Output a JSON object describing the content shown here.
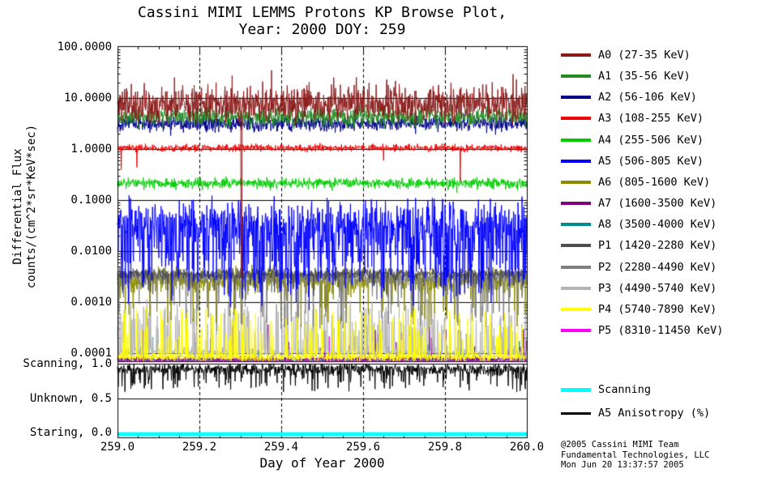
{
  "chart_data": {
    "type": "line",
    "title_line1": "Cassini MIMI LEMMS Protons KP Browse Plot,",
    "title_line2": "Year: 2000 DOY: 259",
    "xlabel": "Day of Year 2000",
    "ylabel_line1": "Differential Flux",
    "ylabel_line2": "counts/(cm^2*sr*KeV*sec)",
    "xlim": [
      259.0,
      260.0
    ],
    "x_ticks": [
      "259.0",
      "259.2",
      "259.4",
      "259.6",
      "259.8",
      "260.0"
    ],
    "y_ticks": [
      "100.0000",
      "10.0000",
      "1.0000",
      "0.1000",
      "0.0100",
      "0.0010",
      "0.0001"
    ],
    "flux_lim": [
      0.0001,
      100.0
    ],
    "flux_log10_lim": [
      -4,
      2
    ],
    "x_grid": "dashed vertical lines every 0.2 day",
    "y_grid": "solid horizontal lines at each decade",
    "legend_position": "right",
    "mode_axis": {
      "ticks": [
        {
          "label": "Scanning, 1.0",
          "value": 1.0
        },
        {
          "label": "Unknown, 0.5",
          "value": 0.5
        },
        {
          "label": "Staring, 0.0",
          "value": 0.0
        }
      ]
    },
    "series": [
      {
        "id": "A0",
        "label": "A0 (27-35 KeV)",
        "color": "#8b1a1a",
        "mean_flux": 7,
        "flux_range": [
          3,
          25
        ],
        "base": 0.88,
        "noise": 0.16,
        "spike_p": 0.05,
        "spike_amp": 0.35,
        "spike_dir": 1,
        "seed": 11,
        "events": [
          {
            "t": 259.303,
            "log": -2.52
          }
        ]
      },
      {
        "id": "A1",
        "label": "A1 (35-56 KeV)",
        "color": "#228b22",
        "mean_flux": 4.3,
        "flux_range": [
          2.8,
          8
        ],
        "base": 0.64,
        "noise": 0.09,
        "spike_p": 0.02,
        "spike_amp": 0.2,
        "spike_dir": 1,
        "seed": 12
      },
      {
        "id": "A2",
        "label": "A2 (56-106 KeV)",
        "color": "#00008b",
        "mean_flux": 3.1,
        "flux_range": [
          2.2,
          4.8
        ],
        "base": 0.5,
        "noise": 0.07,
        "spike_p": 0.02,
        "spike_amp": 0.15,
        "spike_dir": -1,
        "seed": 13
      },
      {
        "id": "A3",
        "label": "A3 (108-255 KeV)",
        "color": "#ee0000",
        "mean_flux": 1.0,
        "flux_range": [
          0.85,
          1.3
        ],
        "base": 0.02,
        "noise": 0.035,
        "spike_p": 0.004,
        "spike_amp": 0.6,
        "spike_dir": -1,
        "seed": 14
      },
      {
        "id": "A4",
        "label": "A4 (255-506 KeV)",
        "color": "#00cc00",
        "mean_flux": 0.21,
        "flux_range": [
          0.16,
          0.3
        ],
        "base": -0.67,
        "noise": 0.05,
        "spike_p": 0.005,
        "spike_amp": 0.2,
        "spike_dir": -1,
        "seed": 15
      },
      {
        "id": "A5",
        "label": "A5 (506-805 KeV)",
        "color": "#0000ff",
        "mean_flux": 0.02,
        "flux_range": [
          0.002,
          0.07
        ],
        "base": -1.45,
        "noise": 0.22,
        "spike_p": 0.3,
        "spike_amp": 1.0,
        "spike_dir": -1,
        "seed": 16
      },
      {
        "id": "A6",
        "label": "A6 (805-1600 KeV)",
        "color": "#8b8b00",
        "mean_flux": 0.0026,
        "flux_range": [
          0.0005,
          0.004
        ],
        "base": -2.58,
        "noise": 0.12,
        "spike_p": 0.06,
        "spike_amp": 0.7,
        "spike_dir": -1,
        "seed": 17
      },
      {
        "id": "A7",
        "label": "A7 (1600-3500 KeV)",
        "color": "#800080",
        "mean_flux": 0.0001,
        "flux_range": [
          7e-05,
          0.0003
        ],
        "base": -4.12,
        "noise": 0.03,
        "spike_p": 0.03,
        "spike_amp": 0.55,
        "spike_dir": 1,
        "seed": 18
      },
      {
        "id": "A8",
        "label": "A8 (3500-4000 KeV)",
        "color": "#008b8b",
        "mean_flux": 8e-05,
        "flux_range": [
          6e-05,
          0.0002
        ],
        "base": -4.14,
        "noise": 0.02,
        "spike_p": 0.012,
        "spike_amp": 0.4,
        "spike_dir": 1,
        "seed": 19
      },
      {
        "id": "P1",
        "label": "P1 (1420-2280 KeV)",
        "color": "#4d4d4d",
        "mean_flux": 0.0035,
        "flux_range": [
          0.0025,
          0.005
        ],
        "base": -2.45,
        "noise": 0.05,
        "spike_p": 0.03,
        "spike_amp": 0.3,
        "spike_dir": -1,
        "seed": 20
      },
      {
        "id": "P2",
        "label": "P2 (2280-4490 KeV)",
        "color": "#7f7f7f",
        "mean_flux": 0.003,
        "flux_range": [
          0.0004,
          0.005
        ],
        "base": -2.52,
        "noise": 0.07,
        "spike_p": 0.08,
        "spike_amp": 0.9,
        "spike_dir": -1,
        "seed": 21
      },
      {
        "id": "P3",
        "label": "P3 (4490-5740 KeV)",
        "color": "#b4b4b4",
        "mean_flux": 0.0001,
        "flux_range": [
          7e-05,
          0.001
        ],
        "base": -4.0,
        "noise": 0.06,
        "spike_p": 0.22,
        "spike_amp": 0.85,
        "spike_dir": 1,
        "seed": 22
      },
      {
        "id": "P4",
        "label": "P4 (5740-7890 KeV)",
        "color": "#ffff00",
        "mean_flux": 9e-05,
        "flux_range": [
          7e-05,
          0.0005
        ],
        "base": -4.08,
        "noise": 0.04,
        "spike_p": 0.12,
        "spike_amp": 0.8,
        "spike_dir": 1,
        "seed": 23
      },
      {
        "id": "P5",
        "label": "P5 (8310-11450 KeV)",
        "color": "#ff00ff",
        "mean_flux": 7e-05,
        "flux_range": [
          6e-05,
          0.0002
        ],
        "base": -4.18,
        "noise": 0.02,
        "spike_p": 0.008,
        "spike_amp": 0.5,
        "spike_dir": 1,
        "seed": 24
      }
    ],
    "scanning": {
      "id": "SCAN",
      "label": "Scanning",
      "color": "#00ffff",
      "value": 0.0
    },
    "anisotropy": {
      "id": "ANISO",
      "label": "A5 Anisotropy (%)",
      "color": "#000000",
      "mean": 0.92,
      "range": [
        0.6,
        1.0
      ],
      "noise": 0.04,
      "spike_p": 0.12,
      "spike_amp": 0.3,
      "seed": 25
    }
  },
  "credits": {
    "line1": "@2005 Cassini MIMI Team",
    "line2": "Fundamental Technologies, LLC",
    "line3": "Mon Jun 20 13:37:57 2005"
  }
}
